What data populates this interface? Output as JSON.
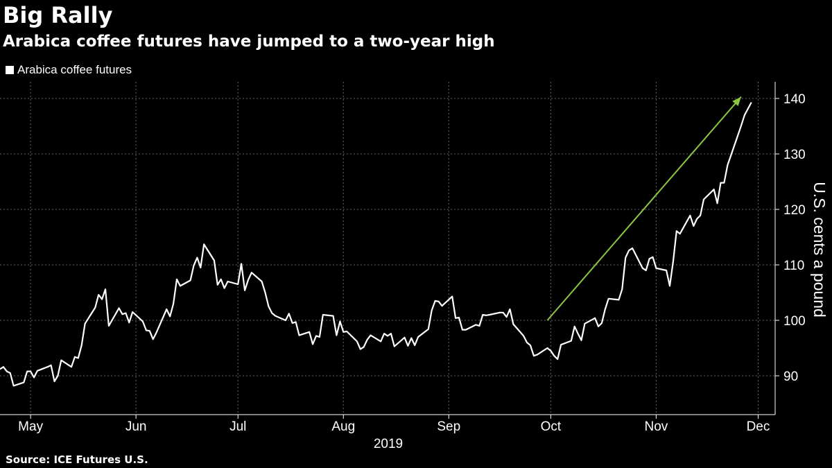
{
  "header": {
    "title": "Big Rally",
    "subtitle": "Arabica coffee futures have jumped to a two-year high"
  },
  "legend": {
    "label": "Arabica coffee futures"
  },
  "source": "Source: ICE Futures U.S.",
  "colors": {
    "background": "#000000",
    "line": "#ffffff",
    "arrow": "#8dc63f",
    "grid": "#666666"
  },
  "chart_data": {
    "type": "line",
    "title": "Big Rally",
    "subtitle": "Arabica coffee futures have jumped to a two-year high",
    "ylabel": "U.S. cents a pound",
    "xlabel": "2019",
    "ylim": [
      83,
      143
    ],
    "yticks": [
      90,
      100,
      110,
      120,
      130,
      140
    ],
    "xlim": [
      "2019-04-22",
      "2019-12-06"
    ],
    "xticks": [
      {
        "label": "May",
        "date": "2019-05-01"
      },
      {
        "label": "Jun",
        "date": "2019-06-01"
      },
      {
        "label": "Jul",
        "date": "2019-07-01"
      },
      {
        "label": "Aug",
        "date": "2019-08-01"
      },
      {
        "label": "Sep",
        "date": "2019-09-01"
      },
      {
        "label": "Oct",
        "date": "2019-10-01"
      },
      {
        "label": "Nov",
        "date": "2019-11-01"
      },
      {
        "label": "Dec",
        "date": "2019-12-01"
      }
    ],
    "grid": true,
    "legend_position": "top-left",
    "series": [
      {
        "name": "Arabica coffee futures",
        "points": [
          [
            "2019-04-22",
            91.2
          ],
          [
            "2019-04-23",
            91.6
          ],
          [
            "2019-04-24",
            90.8
          ],
          [
            "2019-04-25",
            90.5
          ],
          [
            "2019-04-26",
            88.2
          ],
          [
            "2019-04-29",
            88.8
          ],
          [
            "2019-04-30",
            90.8
          ],
          [
            "2019-05-01",
            90.8
          ],
          [
            "2019-05-02",
            89.7
          ],
          [
            "2019-05-03",
            90.9
          ],
          [
            "2019-05-06",
            91.6
          ],
          [
            "2019-05-07",
            91.9
          ],
          [
            "2019-05-08",
            89.0
          ],
          [
            "2019-05-09",
            90.0
          ],
          [
            "2019-05-10",
            92.8
          ],
          [
            "2019-05-13",
            91.6
          ],
          [
            "2019-05-14",
            93.4
          ],
          [
            "2019-05-15",
            93.2
          ],
          [
            "2019-05-16",
            95.5
          ],
          [
            "2019-05-17",
            99.4
          ],
          [
            "2019-05-20",
            102.3
          ],
          [
            "2019-05-21",
            104.6
          ],
          [
            "2019-05-22",
            103.8
          ],
          [
            "2019-05-23",
            105.6
          ],
          [
            "2019-05-24",
            99.0
          ],
          [
            "2019-05-27",
            102.2
          ],
          [
            "2019-05-28",
            101.1
          ],
          [
            "2019-05-29",
            101.3
          ],
          [
            "2019-05-30",
            99.6
          ],
          [
            "2019-05-31",
            101.5
          ],
          [
            "2019-06-03",
            99.8
          ],
          [
            "2019-06-04",
            98.2
          ],
          [
            "2019-06-05",
            98.1
          ],
          [
            "2019-06-06",
            96.6
          ],
          [
            "2019-06-07",
            97.8
          ],
          [
            "2019-06-10",
            102.0
          ],
          [
            "2019-06-11",
            100.7
          ],
          [
            "2019-06-12",
            103.0
          ],
          [
            "2019-06-13",
            107.4
          ],
          [
            "2019-06-14",
            106.2
          ],
          [
            "2019-06-17",
            107.2
          ],
          [
            "2019-06-18",
            109.9
          ],
          [
            "2019-06-19",
            111.3
          ],
          [
            "2019-06-20",
            109.5
          ],
          [
            "2019-06-21",
            113.7
          ],
          [
            "2019-06-24",
            110.8
          ],
          [
            "2019-06-25",
            106.4
          ],
          [
            "2019-06-26",
            107.4
          ],
          [
            "2019-06-27",
            105.8
          ],
          [
            "2019-06-28",
            107.0
          ],
          [
            "2019-07-01",
            106.5
          ],
          [
            "2019-07-02",
            110.2
          ],
          [
            "2019-07-03",
            105.4
          ],
          [
            "2019-07-04",
            107.3
          ],
          [
            "2019-07-05",
            108.6
          ],
          [
            "2019-07-08",
            107.0
          ],
          [
            "2019-07-09",
            105.0
          ],
          [
            "2019-07-10",
            102.5
          ],
          [
            "2019-07-11",
            101.3
          ],
          [
            "2019-07-12",
            100.8
          ],
          [
            "2019-07-15",
            100.0
          ],
          [
            "2019-07-16",
            101.2
          ],
          [
            "2019-07-17",
            99.5
          ],
          [
            "2019-07-18",
            99.7
          ],
          [
            "2019-07-19",
            97.3
          ],
          [
            "2019-07-22",
            97.9
          ],
          [
            "2019-07-23",
            95.7
          ],
          [
            "2019-07-24",
            97.2
          ],
          [
            "2019-07-25",
            97.0
          ],
          [
            "2019-07-26",
            101.0
          ],
          [
            "2019-07-29",
            100.8
          ],
          [
            "2019-07-30",
            97.3
          ],
          [
            "2019-07-31",
            99.8
          ],
          [
            "2019-08-01",
            97.9
          ],
          [
            "2019-08-02",
            98.0
          ],
          [
            "2019-08-05",
            96.2
          ],
          [
            "2019-08-06",
            94.8
          ],
          [
            "2019-08-07",
            95.2
          ],
          [
            "2019-08-08",
            96.5
          ],
          [
            "2019-08-09",
            97.3
          ],
          [
            "2019-08-12",
            96.2
          ],
          [
            "2019-08-13",
            97.6
          ],
          [
            "2019-08-14",
            97.2
          ],
          [
            "2019-08-15",
            97.6
          ],
          [
            "2019-08-16",
            95.3
          ],
          [
            "2019-08-19",
            96.9
          ],
          [
            "2019-08-20",
            95.4
          ],
          [
            "2019-08-21",
            96.8
          ],
          [
            "2019-08-22",
            95.5
          ],
          [
            "2019-08-23",
            97.0
          ],
          [
            "2019-08-26",
            98.4
          ],
          [
            "2019-08-27",
            101.8
          ],
          [
            "2019-08-28",
            103.5
          ],
          [
            "2019-08-29",
            103.4
          ],
          [
            "2019-08-30",
            102.6
          ],
          [
            "2019-09-02",
            104.3
          ],
          [
            "2019-09-03",
            100.4
          ],
          [
            "2019-09-04",
            100.5
          ],
          [
            "2019-09-05",
            98.3
          ],
          [
            "2019-09-06",
            98.3
          ],
          [
            "2019-09-09",
            99.2
          ],
          [
            "2019-09-10",
            99.0
          ],
          [
            "2019-09-11",
            101.0
          ],
          [
            "2019-09-12",
            100.9
          ],
          [
            "2019-09-13",
            101.0
          ],
          [
            "2019-09-16",
            101.4
          ],
          [
            "2019-09-17",
            101.4
          ],
          [
            "2019-09-18",
            100.6
          ],
          [
            "2019-09-19",
            102.0
          ],
          [
            "2019-09-20",
            99.3
          ],
          [
            "2019-09-23",
            97.2
          ],
          [
            "2019-09-24",
            96.0
          ],
          [
            "2019-09-25",
            95.5
          ],
          [
            "2019-09-26",
            93.6
          ],
          [
            "2019-09-27",
            93.8
          ],
          [
            "2019-09-30",
            95.0
          ],
          [
            "2019-10-01",
            94.5
          ],
          [
            "2019-10-02",
            93.6
          ],
          [
            "2019-10-03",
            93.0
          ],
          [
            "2019-10-04",
            95.6
          ],
          [
            "2019-10-07",
            96.3
          ],
          [
            "2019-10-08",
            98.9
          ],
          [
            "2019-10-09",
            97.6
          ],
          [
            "2019-10-10",
            96.4
          ],
          [
            "2019-10-11",
            99.4
          ],
          [
            "2019-10-14",
            100.4
          ],
          [
            "2019-10-15",
            98.9
          ],
          [
            "2019-10-16",
            99.5
          ],
          [
            "2019-10-17",
            102.0
          ],
          [
            "2019-10-18",
            103.9
          ],
          [
            "2019-10-21",
            103.7
          ],
          [
            "2019-10-22",
            105.6
          ],
          [
            "2019-10-23",
            111.3
          ],
          [
            "2019-10-24",
            112.6
          ],
          [
            "2019-10-25",
            113.0
          ],
          [
            "2019-10-28",
            109.4
          ],
          [
            "2019-10-29",
            109.0
          ],
          [
            "2019-10-30",
            111.1
          ],
          [
            "2019-10-31",
            111.4
          ],
          [
            "2019-11-01",
            109.4
          ],
          [
            "2019-11-04",
            109.0
          ],
          [
            "2019-11-05",
            106.2
          ],
          [
            "2019-11-06",
            110.6
          ],
          [
            "2019-11-07",
            116.1
          ],
          [
            "2019-11-08",
            115.6
          ],
          [
            "2019-11-11",
            118.9
          ],
          [
            "2019-11-12",
            117.0
          ],
          [
            "2019-11-13",
            118.3
          ],
          [
            "2019-11-14",
            118.9
          ],
          [
            "2019-11-15",
            121.8
          ],
          [
            "2019-11-18",
            123.6
          ],
          [
            "2019-11-19",
            121.1
          ],
          [
            "2019-11-20",
            124.8
          ],
          [
            "2019-11-21",
            124.8
          ],
          [
            "2019-11-22",
            128.0
          ],
          [
            "2019-11-25",
            133.3
          ],
          [
            "2019-11-26",
            135.1
          ],
          [
            "2019-11-27",
            137.0
          ],
          [
            "2019-11-29",
            139.3
          ]
        ]
      }
    ],
    "annotations": [
      {
        "type": "arrow",
        "from": [
          "2019-09-30",
          100.0
        ],
        "to": [
          "2019-11-26",
          140.3
        ]
      }
    ]
  }
}
